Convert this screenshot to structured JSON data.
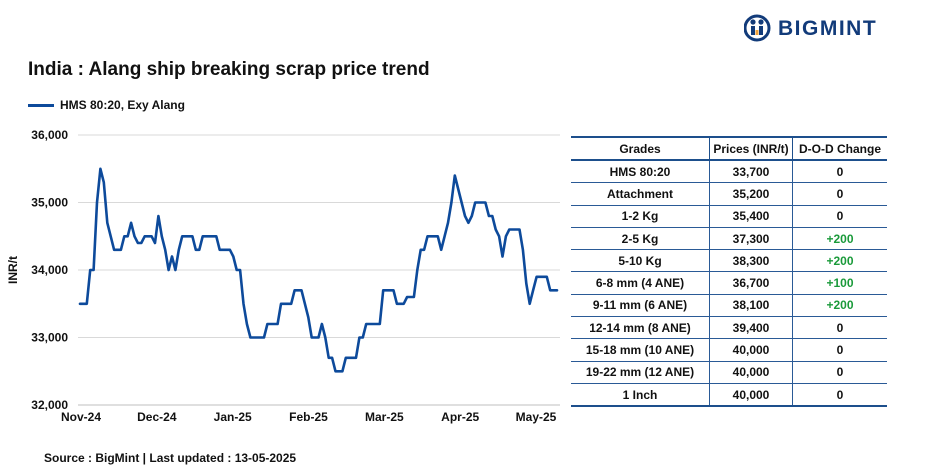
{
  "header": {
    "brand": "BIGMINT",
    "title": "India : Alang ship breaking scrap price trend"
  },
  "colors": {
    "series": "#0d4a9b",
    "brand": "#123b7a",
    "positive_change": "#1a9a3a"
  },
  "chart_data": {
    "type": "line",
    "title": "India : Alang ship breaking scrap price trend",
    "ylabel": "INR/t",
    "xlabel": "",
    "ylim": [
      32000,
      36000
    ],
    "yticks": [
      32000,
      33000,
      34000,
      35000,
      36000
    ],
    "ytick_labels": [
      "32,000",
      "33,000",
      "34,000",
      "35,000",
      "36,000"
    ],
    "xtick_labels": [
      "Nov-24",
      "Dec-24",
      "Jan-25",
      "Feb-25",
      "Mar-25",
      "Apr-25",
      "May-25"
    ],
    "grid": "horizontal",
    "legend": "top-left",
    "series": [
      {
        "name": "HMS 80:20, Exy Alang",
        "values": [
          33500,
          33500,
          33500,
          34000,
          34000,
          35000,
          35500,
          35300,
          34700,
          34500,
          34300,
          34300,
          34300,
          34500,
          34500,
          34700,
          34500,
          34400,
          34400,
          34500,
          34500,
          34500,
          34400,
          34800,
          34500,
          34300,
          34000,
          34200,
          34000,
          34300,
          34500,
          34500,
          34500,
          34500,
          34300,
          34300,
          34500,
          34500,
          34500,
          34500,
          34500,
          34300,
          34300,
          34300,
          34300,
          34200,
          34000,
          34000,
          33500,
          33200,
          33000,
          33000,
          33000,
          33000,
          33000,
          33200,
          33200,
          33200,
          33200,
          33500,
          33500,
          33500,
          33500,
          33700,
          33700,
          33700,
          33500,
          33300,
          33000,
          33000,
          33000,
          33200,
          33000,
          32700,
          32700,
          32500,
          32500,
          32500,
          32700,
          32700,
          32700,
          32700,
          33000,
          33000,
          33200,
          33200,
          33200,
          33200,
          33200,
          33700,
          33700,
          33700,
          33700,
          33500,
          33500,
          33500,
          33600,
          33600,
          33600,
          34000,
          34300,
          34300,
          34500,
          34500,
          34500,
          34500,
          34300,
          34500,
          34700,
          35000,
          35400,
          35200,
          35000,
          34800,
          34700,
          34800,
          35000,
          35000,
          35000,
          35000,
          34800,
          34800,
          34600,
          34500,
          34200,
          34500,
          34600,
          34600,
          34600,
          34600,
          34300,
          33800,
          33500,
          33700,
          33900,
          33900,
          33900,
          33900,
          33700,
          33700,
          33700
        ]
      }
    ]
  },
  "table": {
    "headers": [
      "Grades",
      "Prices (INR/t)",
      "D-O-D Change"
    ],
    "rows": [
      {
        "grade": "HMS 80:20",
        "price": "33,700",
        "change": "0"
      },
      {
        "grade": "Attachment",
        "price": "35,200",
        "change": "0"
      },
      {
        "grade": "1-2 Kg",
        "price": "35,400",
        "change": "0"
      },
      {
        "grade": "2-5 Kg",
        "price": "37,300",
        "change": "+200"
      },
      {
        "grade": "5-10 Kg",
        "price": "38,300",
        "change": "+200"
      },
      {
        "grade": "6-8 mm (4 ANE)",
        "price": "36,700",
        "change": "+100"
      },
      {
        "grade": "9-11 mm (6 ANE)",
        "price": "38,100",
        "change": "+200"
      },
      {
        "grade": "12-14 mm (8 ANE)",
        "price": "39,400",
        "change": "0"
      },
      {
        "grade": "15-18 mm (10 ANE)",
        "price": "40,000",
        "change": "0"
      },
      {
        "grade": "19-22 mm (12 ANE)",
        "price": "40,000",
        "change": "0"
      },
      {
        "grade": "1 Inch",
        "price": "40,000",
        "change": "0"
      }
    ]
  },
  "footer": {
    "source": "Source : BigMint | Last updated : 13-05-2025"
  }
}
